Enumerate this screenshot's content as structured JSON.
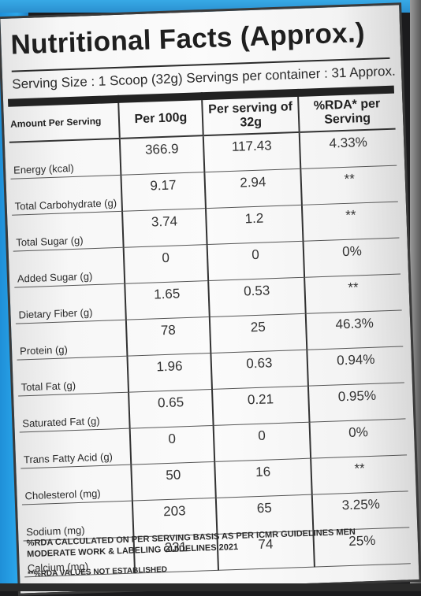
{
  "label": {
    "title": "Nutritional Facts (Approx.)",
    "serving_line": "Serving Size : 1 Scoop (32g) Servings per container : 31 Approx.",
    "table": {
      "headers": [
        "Amount Per Serving",
        "Per 100g",
        "Per serving of 32g",
        "%RDA* per Serving"
      ],
      "rows": [
        [
          "Energy (kcal)",
          "366.9",
          "117.43",
          "4.33%"
        ],
        [
          "Total Carbohydrate (g)",
          "9.17",
          "2.94",
          "**"
        ],
        [
          "Total Sugar (g)",
          "3.74",
          "1.2",
          "**"
        ],
        [
          "Added Sugar (g)",
          "0",
          "0",
          "0%"
        ],
        [
          "Dietary Fiber (g)",
          "1.65",
          "0.53",
          "**"
        ],
        [
          "Protein (g)",
          "78",
          "25",
          "46.3%"
        ],
        [
          "Total Fat (g)",
          "1.96",
          "0.63",
          "0.94%"
        ],
        [
          "Saturated Fat (g)",
          "0.65",
          "0.21",
          "0.95%"
        ],
        [
          "Trans Fatty Acid (g)",
          "0",
          "0",
          "0%"
        ],
        [
          "Cholesterol (mg)",
          "50",
          "16",
          "**"
        ],
        [
          "Sodium (mg)",
          "203",
          "65",
          "3.25%"
        ],
        [
          "Calcium (mg)",
          "231",
          "74",
          "25%"
        ]
      ]
    },
    "footnote_1": "%RDA CALCULATED ON PER SERVING BASIS AS PER ICMR GUIDELINES MEN MODERATE WORK & LABELING GUIDELINES 2021",
    "footnote_2": "**%RDA VALUES NOT ESTABLISHED"
  },
  "colors": {
    "package_blue": "#2aa6ea",
    "label_background": "#f7f7f7",
    "text_dark": "#222222"
  }
}
